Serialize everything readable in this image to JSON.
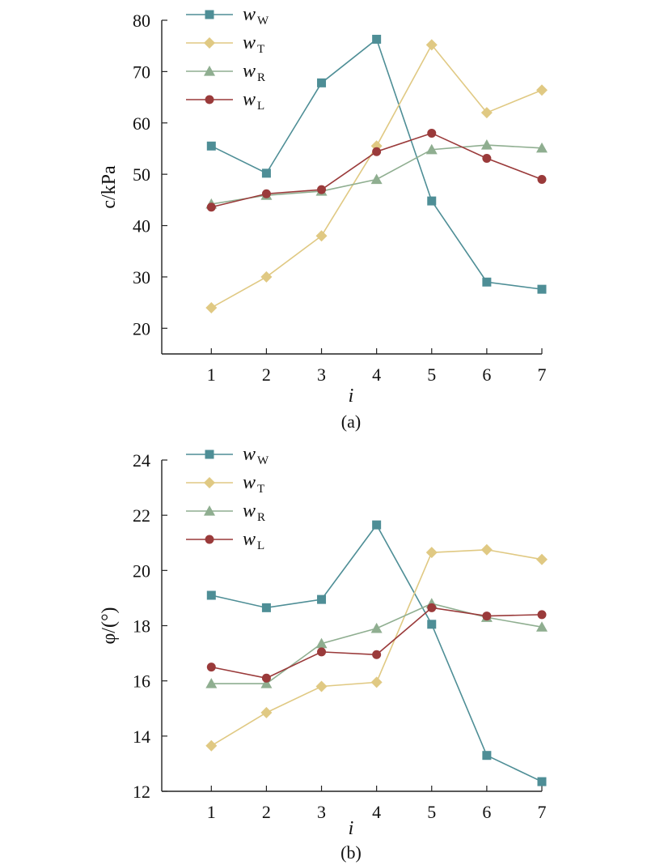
{
  "chart_data": [
    {
      "type": "line",
      "panel_label": "(a)",
      "xlabel": "i",
      "ylabel": "c/kPa",
      "x": [
        1,
        2,
        3,
        4,
        5,
        6,
        7
      ],
      "xlim": [
        0.1,
        7
      ],
      "ylim": [
        15,
        80
      ],
      "yticks": [
        20,
        30,
        40,
        50,
        60,
        70,
        80
      ],
      "grid": false,
      "legend_position": "top-left",
      "series": [
        {
          "name": "w",
          "sub": "W",
          "color": "#4e8e96",
          "marker": "square",
          "values": [
            55.5,
            50.2,
            67.8,
            76.3,
            44.8,
            29.0,
            27.6
          ]
        },
        {
          "name": "w",
          "sub": "T",
          "color": "#e0c983",
          "marker": "diamond",
          "values": [
            24.0,
            30.0,
            38.0,
            55.5,
            75.2,
            62.0,
            66.4
          ]
        },
        {
          "name": "w",
          "sub": "R",
          "color": "#8fae90",
          "marker": "triangle",
          "values": [
            44.2,
            45.9,
            46.7,
            49.0,
            54.8,
            55.7,
            55.1
          ]
        },
        {
          "name": "w",
          "sub": "L",
          "color": "#9a3a3a",
          "marker": "circle",
          "values": [
            43.6,
            46.2,
            47.0,
            54.4,
            58.0,
            53.1,
            49.0
          ]
        }
      ]
    },
    {
      "type": "line",
      "panel_label": "(b)",
      "xlabel": "i",
      "ylabel": "φ/(°)",
      "x": [
        1,
        2,
        3,
        4,
        5,
        6,
        7
      ],
      "xlim": [
        0.1,
        7
      ],
      "ylim": [
        12,
        24
      ],
      "yticks": [
        12,
        14,
        16,
        18,
        20,
        22,
        24
      ],
      "grid": false,
      "legend_position": "top-left",
      "series": [
        {
          "name": "w",
          "sub": "W",
          "color": "#4e8e96",
          "marker": "square",
          "values": [
            19.1,
            18.65,
            18.95,
            21.65,
            18.05,
            13.3,
            12.35
          ]
        },
        {
          "name": "w",
          "sub": "T",
          "color": "#e0c983",
          "marker": "diamond",
          "values": [
            13.65,
            14.85,
            15.8,
            15.95,
            20.65,
            20.75,
            20.4
          ]
        },
        {
          "name": "w",
          "sub": "R",
          "color": "#8fae90",
          "marker": "triangle",
          "values": [
            15.9,
            15.9,
            17.35,
            17.9,
            18.8,
            18.3,
            17.95
          ]
        },
        {
          "name": "w",
          "sub": "L",
          "color": "#9a3a3a",
          "marker": "circle",
          "values": [
            16.5,
            16.1,
            17.05,
            16.95,
            18.65,
            18.35,
            18.4
          ]
        }
      ]
    }
  ]
}
